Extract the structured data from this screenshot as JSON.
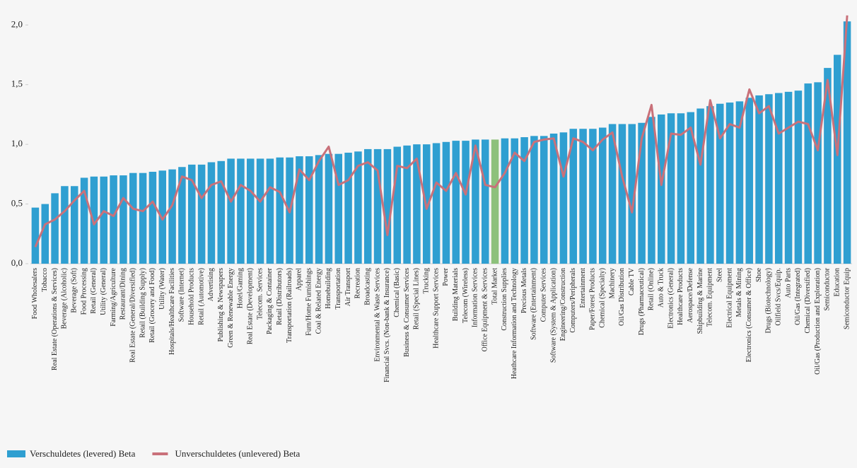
{
  "chart_data": {
    "type": "bar_line",
    "categories": [
      "Food Wholesalers",
      "Tobacco",
      "Real Estate (Operations & Services)",
      "Beverage (Alcoholic)",
      "Beverage (Soft)",
      "Food Processing",
      "Retail (General)",
      "Utility (General)",
      "Farming/Agriculture",
      "Restaurant/Dining",
      "Real Estate (General/Diversified)",
      "Retail (Building Supply)",
      "Retail (Grocery and Food)",
      "Utility (Water)",
      "Hospitals/Healthcare Facilities",
      "Software (Internet)",
      "Household Products",
      "Retail (Automotive)",
      "Advertising",
      "Publishing & Newspapers",
      "Green & Renewable Energy",
      "Hotel/Gaming",
      "Real Estate (Development)",
      "Telecom. Services",
      "Packaging & Container",
      "Retail (Distributors)",
      "Transportation (Railroads)",
      "Apparel",
      "Furn/Home Furnishings",
      "Coal & Related Energy",
      "Homebuilding",
      "Transportation",
      "Air Transport",
      "Recreation",
      "Broadcasting",
      "Environmental & Waste Services",
      "Financial Svcs. (Non-bank & Insurance)",
      "Chemical (Basic)",
      "Business & Consumer Services",
      "Retail (Special Lines)",
      "Trucking",
      "Healthcare Support Services",
      "Power",
      "Building Materials",
      "Telecom (Wireless)",
      "Information Services",
      "Office Equipment & Services",
      "Total Market",
      "Construction Supplies",
      "Heathcare Information and Technology",
      "Precious Metals",
      "Software (Entertainment)",
      "Computer Services",
      "Software (System & Application)",
      "Engineering/Construction",
      "Computers/Peripherals",
      "Entertainment",
      "Paper/Forest Products",
      "Chemical (Specialty)",
      "Machinery",
      "Oil/Gas Distribution",
      "Cable TV",
      "Drugs (Pharmaceutical)",
      "Retail (Online)",
      "Auto & Truck",
      "Electronics (General)",
      "Healthcare Products",
      "Aerospace/Defense",
      "Shipbuilding & Marine",
      "Telecom. Equipment",
      "Steel",
      "Electrical Equipment",
      "Metals & Mining",
      "Electronics (Consumer & Office)",
      "Shoe",
      "Drugs (Biotechnology)",
      "Oilfield Svcs/Equip.",
      "Auto Parts",
      "Oil/Gas (Integrated)",
      "Chemical (Diversified)",
      "Oil/Gas (Production and Exploration)",
      "Semiconductor",
      "Education",
      "Semiconductor Equip"
    ],
    "series": [
      {
        "name": "Verschuldetes (levered) Beta",
        "kind": "bar",
        "color": "#2f9fd1",
        "values": [
          0.47,
          0.5,
          0.59,
          0.65,
          0.65,
          0.72,
          0.73,
          0.73,
          0.74,
          0.74,
          0.76,
          0.76,
          0.77,
          0.78,
          0.79,
          0.81,
          0.83,
          0.83,
          0.85,
          0.86,
          0.88,
          0.88,
          0.88,
          0.88,
          0.88,
          0.89,
          0.89,
          0.9,
          0.9,
          0.91,
          0.92,
          0.92,
          0.93,
          0.94,
          0.96,
          0.96,
          0.96,
          0.98,
          0.99,
          1.0,
          1.0,
          1.01,
          1.02,
          1.03,
          1.03,
          1.04,
          1.04,
          1.04,
          1.05,
          1.05,
          1.06,
          1.07,
          1.07,
          1.09,
          1.1,
          1.13,
          1.13,
          1.13,
          1.14,
          1.17,
          1.17,
          1.17,
          1.18,
          1.23,
          1.25,
          1.26,
          1.26,
          1.27,
          1.3,
          1.32,
          1.34,
          1.35,
          1.36,
          1.39,
          1.41,
          1.42,
          1.43,
          1.44,
          1.45,
          1.51,
          1.52,
          1.64,
          1.75,
          2.03
        ]
      },
      {
        "name": "Unverschuldetes (unlevered) Beta",
        "kind": "line",
        "color": "#c9717a",
        "values": [
          0.14,
          0.33,
          0.37,
          0.44,
          0.53,
          0.61,
          0.33,
          0.44,
          0.4,
          0.55,
          0.46,
          0.44,
          0.52,
          0.37,
          0.49,
          0.73,
          0.7,
          0.55,
          0.66,
          0.69,
          0.52,
          0.66,
          0.61,
          0.52,
          0.64,
          0.6,
          0.43,
          0.79,
          0.7,
          0.86,
          0.98,
          0.66,
          0.7,
          0.82,
          0.85,
          0.78,
          0.24,
          0.82,
          0.8,
          0.88,
          0.46,
          0.68,
          0.61,
          0.76,
          0.58,
          0.99,
          0.66,
          0.64,
          0.76,
          0.93,
          0.86,
          1.02,
          1.04,
          1.05,
          0.73,
          1.05,
          1.02,
          0.95,
          1.04,
          1.1,
          0.73,
          0.43,
          1.05,
          1.33,
          0.66,
          1.09,
          1.08,
          1.14,
          0.83,
          1.37,
          1.05,
          1.17,
          1.14,
          1.46,
          1.26,
          1.32,
          1.09,
          1.14,
          1.19,
          1.17,
          0.95,
          1.54,
          0.91,
          2.08
        ]
      }
    ],
    "highlight_category": "Total Market",
    "highlight_color": "#8dc17b",
    "ylim": [
      0,
      2.15
    ],
    "yticks": [
      {
        "value": 0,
        "label": "0,0"
      },
      {
        "value": 0.5,
        "label": "0,5"
      },
      {
        "value": 1,
        "label": "1,0"
      },
      {
        "value": 1.5,
        "label": "1,5"
      },
      {
        "value": 2,
        "label": "2,0"
      }
    ],
    "legend": "bottom-left"
  }
}
